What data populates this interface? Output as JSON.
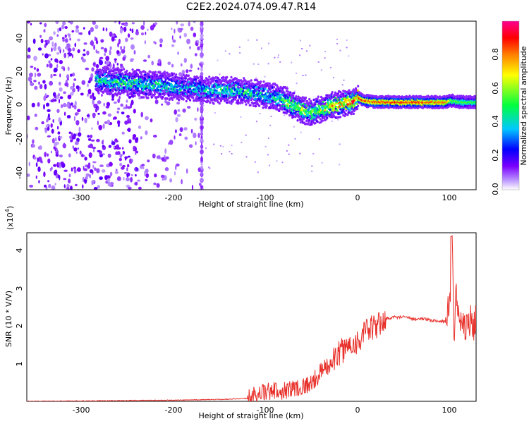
{
  "title": "C2E2.2024.074.09.47.R14",
  "top_panel": {
    "xlabel": "Height of straight line (km)",
    "ylabel": "Frequency (Hz)",
    "x_ticks": [
      "-300",
      "-200",
      "-100",
      "0",
      "100"
    ],
    "y_ticks": [
      "40",
      "20",
      "0",
      "-20",
      "-40"
    ],
    "colorbar": {
      "label": "Normalized spectral amplitude",
      "ticks": [
        "0.0",
        "0.2",
        "0.4",
        "0.6",
        "0.8"
      ],
      "colors": [
        "#ffffff",
        "#7a00ff",
        "#0000ff",
        "#00c8ff",
        "#00ff40",
        "#ffff00",
        "#ff8000",
        "#ff0000",
        "#ff0090"
      ]
    }
  },
  "bottom_panel": {
    "xlabel": "Height of straight line (km)",
    "ylabel": "SNR (10 * V/V)",
    "scale_label": "(x10",
    "scale_exp": "4",
    "scale_close": ")",
    "x_ticks": [
      "-300",
      "-200",
      "-100",
      "0",
      "100"
    ],
    "y_ticks": [
      "4",
      "3",
      "2",
      "1"
    ],
    "line_color": "#e8302a"
  },
  "chart_data": [
    {
      "type": "heatmap",
      "title": "C2E2.2024.074.09.47.R14",
      "xlabel": "Height of straight line (km)",
      "ylabel": "Frequency (Hz)",
      "xlim": [
        -360,
        128
      ],
      "ylim": [
        -50,
        50
      ],
      "colorbar_range": [
        0.0,
        1.0
      ],
      "ridge": {
        "x": [
          -285,
          -260,
          -240,
          -220,
          -200,
          -180,
          -160,
          -140,
          -120,
          -100,
          -90,
          -80,
          -70,
          -60,
          -50,
          -45,
          -40,
          -30,
          -20,
          -10,
          -5,
          0,
          5,
          20,
          50,
          80,
          95,
          100,
          110,
          128
        ],
        "frequency_hz": [
          15,
          14,
          13,
          12,
          11,
          10,
          9,
          9,
          8,
          6,
          5,
          3,
          0,
          -3,
          -4,
          -3,
          -2,
          0,
          1,
          2,
          3,
          5,
          3,
          2,
          2,
          2,
          2,
          3,
          2,
          2
        ],
        "amplitude": [
          0.4,
          0.45,
          0.45,
          0.4,
          0.4,
          0.35,
          0.4,
          0.45,
          0.45,
          0.4,
          0.45,
          0.5,
          0.55,
          0.55,
          0.55,
          0.55,
          0.6,
          0.7,
          0.75,
          0.8,
          0.85,
          0.85,
          0.85,
          0.85,
          0.85,
          0.85,
          0.8,
          0.6,
          0.55,
          0.5
        ]
      }
    },
    {
      "type": "line",
      "xlabel": "Height of straight line (km)",
      "ylabel": "SNR (10 * V/V)",
      "y_multiplier": 10000,
      "xlim": [
        -360,
        128
      ],
      "ylim": [
        0,
        4.5
      ],
      "series": [
        {
          "x": [
            -360,
            -300,
            -250,
            -200,
            -150,
            -120,
            -110,
            -100,
            -80,
            -60,
            -50,
            -40,
            -30,
            -20,
            -10,
            0,
            10,
            20,
            30,
            40,
            50,
            60,
            70,
            80,
            90,
            95,
            100,
            102,
            104,
            106,
            110,
            115,
            120,
            128
          ],
          "y": [
            0.0,
            0.01,
            0.02,
            0.03,
            0.05,
            0.08,
            0.2,
            0.25,
            0.3,
            0.4,
            0.5,
            0.8,
            1.0,
            1.3,
            1.5,
            1.6,
            1.9,
            2.0,
            2.2,
            2.25,
            2.25,
            2.2,
            2.2,
            2.15,
            2.15,
            2.1,
            2.9,
            4.3,
            1.8,
            2.8,
            2.1,
            2.1,
            2.1,
            2.1
          ],
          "peak": {
            "x": 101,
            "y": 4.4
          }
        }
      ]
    }
  ]
}
